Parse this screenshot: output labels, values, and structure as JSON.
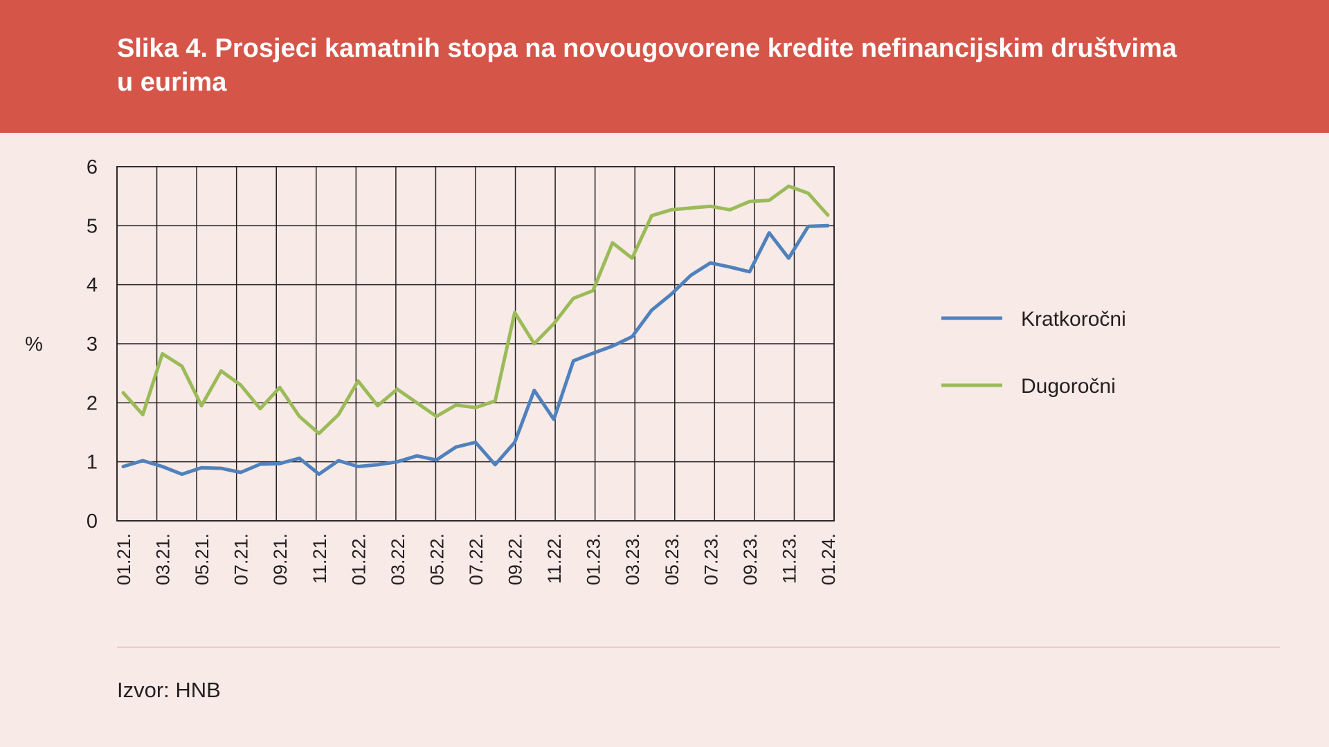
{
  "title": "Slika 4. Prosjeci kamatnih stopa na novougovorene kredite nefinancijskim društvima u eurima",
  "source": "Izvor: HNB",
  "colors": {
    "header": "#d55549",
    "background": "#f8eae7",
    "kratkorocni": "#4f81bd",
    "dugorocni": "#9bbb59"
  },
  "chart_data": {
    "type": "line",
    "ylabel": "%",
    "ylim": [
      0,
      6
    ],
    "yticks": [
      0,
      1,
      2,
      3,
      4,
      5,
      6
    ],
    "grid": true,
    "legend_position": "right",
    "x": [
      "01.21.",
      "02.21.",
      "03.21.",
      "04.21.",
      "05.21.",
      "06.21.",
      "07.21.",
      "08.21.",
      "09.21.",
      "10.21.",
      "11.21.",
      "12.21.",
      "01.22.",
      "02.22.",
      "03.22.",
      "04.22.",
      "05.22.",
      "06.22.",
      "07.22.",
      "08.22.",
      "09.22.",
      "10.22.",
      "11.22.",
      "12.22.",
      "01.23.",
      "02.23.",
      "03.23.",
      "04.23.",
      "05.23.",
      "06.23.",
      "07.23.",
      "08.23.",
      "09.23.",
      "10.23.",
      "11.23.",
      "12.23.",
      "01.24."
    ],
    "xtick_labels": [
      "01.21.",
      "03.21.",
      "05.21.",
      "07.21.",
      "09.21.",
      "11.21.",
      "01.22.",
      "03.22.",
      "05.22.",
      "07.22.",
      "09.22.",
      "11.22.",
      "01.23.",
      "03.23.",
      "05.23.",
      "07.23.",
      "09.23.",
      "11.23.",
      "01.24."
    ],
    "series": [
      {
        "name": "Kratkoročni",
        "values": [
          0.92,
          1.02,
          0.92,
          0.79,
          0.9,
          0.89,
          0.82,
          0.96,
          0.97,
          1.06,
          0.79,
          1.02,
          0.92,
          0.95,
          1.0,
          1.1,
          1.03,
          1.25,
          1.33,
          0.95,
          1.33,
          2.21,
          1.72,
          2.71,
          2.84,
          2.96,
          3.12,
          3.57,
          3.84,
          4.16,
          4.37,
          4.3,
          4.22,
          4.88,
          4.45,
          4.99,
          5.0
        ]
      },
      {
        "name": "Dugoročni",
        "values": [
          2.17,
          1.8,
          2.83,
          2.62,
          1.95,
          2.54,
          2.3,
          1.9,
          2.26,
          1.77,
          1.48,
          1.8,
          2.37,
          1.95,
          2.23,
          2.0,
          1.77,
          1.96,
          1.92,
          2.03,
          3.53,
          3.0,
          3.34,
          3.77,
          3.9,
          4.71,
          4.45,
          5.17,
          5.27,
          5.3,
          5.33,
          5.27,
          5.41,
          5.43,
          5.67,
          5.55,
          5.18
        ]
      }
    ]
  }
}
